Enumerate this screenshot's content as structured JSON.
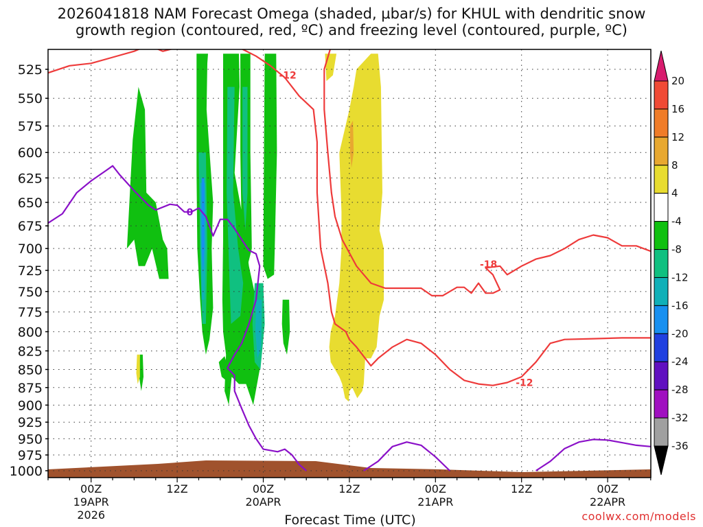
{
  "chart_data": {
    "type": "contour-timeheight",
    "title_line1": "2026041818 NAM Forecast Omega (shaded, µbar/s) for KHUL with dendritic snow",
    "title_line2": "growth region (contoured, red, ºC) and freezing level (contoured, purple, ºC)",
    "xlabel": "Forecast Time (UTC)",
    "x_ticks": [
      {
        "hour": 6,
        "label": "00Z",
        "date": "19APR",
        "year": "2026"
      },
      {
        "hour": 18,
        "label": "12Z",
        "date": "",
        "year": ""
      },
      {
        "hour": 30,
        "label": "00Z",
        "date": "20APR",
        "year": ""
      },
      {
        "hour": 42,
        "label": "12Z",
        "date": "",
        "year": ""
      },
      {
        "hour": 54,
        "label": "00Z",
        "date": "21APR",
        "year": ""
      },
      {
        "hour": 66,
        "label": "12Z",
        "date": "",
        "year": ""
      },
      {
        "hour": 78,
        "label": "00Z",
        "date": "22APR",
        "year": ""
      }
    ],
    "xlim": [
      0,
      84
    ],
    "y_ticks": [
      525,
      550,
      575,
      600,
      625,
      650,
      675,
      700,
      725,
      750,
      775,
      800,
      825,
      850,
      875,
      900,
      925,
      950,
      975,
      1000
    ],
    "ylim": [
      505,
      1010
    ],
    "colorbar": {
      "levels": [
        "20",
        "16",
        "12",
        "8",
        "4",
        "-4",
        "-8",
        "-12",
        "-16",
        "-20",
        "-24",
        "-28",
        "-32",
        "-36"
      ],
      "colors": [
        "#d81c6e",
        "#f04a35",
        "#f07c28",
        "#e8a830",
        "#e8dc30",
        "#ffffff",
        "#10c010",
        "#10c080",
        "#10b0b8",
        "#1890f0",
        "#2040e0",
        "#6010c0",
        "#a010c0",
        "#a0a0a0",
        "#000000"
      ]
    },
    "series": [
      {
        "name": "dendritic_-12C_upper",
        "color": "#ee3a3a",
        "points": [
          [
            0,
            528
          ],
          [
            3,
            522
          ],
          [
            6,
            520
          ],
          [
            9,
            515
          ],
          [
            12,
            510
          ],
          [
            14,
            505
          ],
          [
            16,
            510
          ],
          [
            18,
            507
          ],
          [
            20,
            505
          ],
          [
            23,
            505
          ],
          [
            27,
            508
          ],
          [
            29,
            514
          ],
          [
            31,
            522
          ],
          [
            33,
            532
          ],
          [
            35,
            548
          ],
          [
            37,
            560
          ],
          [
            37.5,
            590
          ],
          [
            37.5,
            640
          ],
          [
            38,
            700
          ],
          [
            39,
            740
          ],
          [
            39.5,
            775
          ],
          [
            40,
            790
          ],
          [
            41.5,
            800
          ],
          [
            42,
            810
          ],
          [
            43,
            820
          ],
          [
            45,
            845
          ],
          [
            46,
            835
          ],
          [
            48,
            820
          ],
          [
            50,
            810
          ],
          [
            52,
            815
          ],
          [
            54,
            830
          ],
          [
            56,
            850
          ],
          [
            58,
            865
          ],
          [
            60,
            870
          ],
          [
            62,
            872
          ],
          [
            64,
            868
          ],
          [
            66,
            860
          ],
          [
            68,
            840
          ],
          [
            70,
            815
          ],
          [
            72,
            810
          ],
          [
            76,
            809
          ],
          [
            80,
            808
          ],
          [
            84,
            808
          ]
        ],
        "label": "-12",
        "label_at": [
          [
            32,
            530
          ],
          [
            65,
            868
          ]
        ]
      },
      {
        "name": "dendritic_-18C",
        "color": "#ee3a3a",
        "points": [
          [
            39.5,
            505
          ],
          [
            39,
            515
          ],
          [
            38.5,
            525
          ],
          [
            38.5,
            560
          ],
          [
            39,
            600
          ],
          [
            39.5,
            640
          ],
          [
            40,
            665
          ],
          [
            41,
            690
          ],
          [
            43,
            720
          ],
          [
            45,
            740
          ],
          [
            47,
            746
          ],
          [
            49,
            746
          ],
          [
            52,
            746
          ],
          [
            53.5,
            755
          ],
          [
            55,
            755
          ],
          [
            57,
            745
          ],
          [
            58,
            745
          ],
          [
            59,
            752
          ],
          [
            60,
            740
          ],
          [
            61,
            752
          ],
          [
            62,
            752
          ],
          [
            63,
            748
          ],
          [
            62,
            730
          ],
          [
            61,
            722
          ],
          [
            63,
            720
          ],
          [
            64,
            730
          ],
          [
            66,
            720
          ],
          [
            68,
            712
          ],
          [
            70,
            708
          ],
          [
            72,
            700
          ],
          [
            74,
            690
          ],
          [
            76,
            685
          ],
          [
            78,
            688
          ],
          [
            80,
            697
          ],
          [
            82,
            697
          ],
          [
            84,
            703
          ]
        ],
        "label": "-18",
        "label_at": [
          [
            60,
            718
          ]
        ]
      },
      {
        "name": "freezing_level_0C",
        "color": "#8a10c8",
        "points": [
          [
            0,
            672
          ],
          [
            2,
            662
          ],
          [
            4,
            640
          ],
          [
            6,
            628
          ],
          [
            8,
            618
          ],
          [
            9,
            613
          ],
          [
            10,
            622
          ],
          [
            12,
            638
          ],
          [
            14,
            653
          ],
          [
            15,
            658
          ],
          [
            17,
            652
          ],
          [
            18,
            653
          ],
          [
            19,
            660
          ],
          [
            20,
            660
          ],
          [
            21,
            656
          ],
          [
            22,
            665
          ],
          [
            23,
            686
          ],
          [
            24,
            668
          ],
          [
            25,
            668
          ],
          [
            26,
            678
          ],
          [
            27,
            690
          ],
          [
            28,
            702
          ],
          [
            29,
            706
          ],
          [
            29.5,
            720
          ],
          [
            29,
            760
          ],
          [
            28,
            790
          ],
          [
            27,
            815
          ],
          [
            26,
            830
          ],
          [
            25,
            848
          ],
          [
            26,
            858
          ],
          [
            26,
            880
          ],
          [
            27,
            905
          ],
          [
            28,
            930
          ],
          [
            29,
            950
          ],
          [
            30,
            966
          ],
          [
            32,
            970
          ],
          [
            33,
            966
          ],
          [
            34,
            975
          ],
          [
            35,
            990
          ],
          [
            36,
            1000
          ]
        ]
      },
      {
        "name": "freezing_level_0C_b",
        "color": "#8a10c8",
        "points": [
          [
            44,
            1000
          ],
          [
            46,
            985
          ],
          [
            48,
            962
          ],
          [
            50,
            955
          ],
          [
            52,
            960
          ],
          [
            54,
            978
          ],
          [
            56,
            1000
          ]
        ]
      },
      {
        "name": "freezing_level_0C_c",
        "color": "#8a10c8",
        "points": [
          [
            68,
            1000
          ],
          [
            70,
            985
          ],
          [
            72,
            965
          ],
          [
            74,
            955
          ],
          [
            76,
            951
          ],
          [
            78,
            952
          ],
          [
            80,
            956
          ],
          [
            82,
            960
          ],
          [
            84,
            962
          ]
        ]
      }
    ],
    "label_zero": "0",
    "terrain_color": "#a0522d"
  },
  "footer": {
    "credit": "coolwx.com/models"
  }
}
